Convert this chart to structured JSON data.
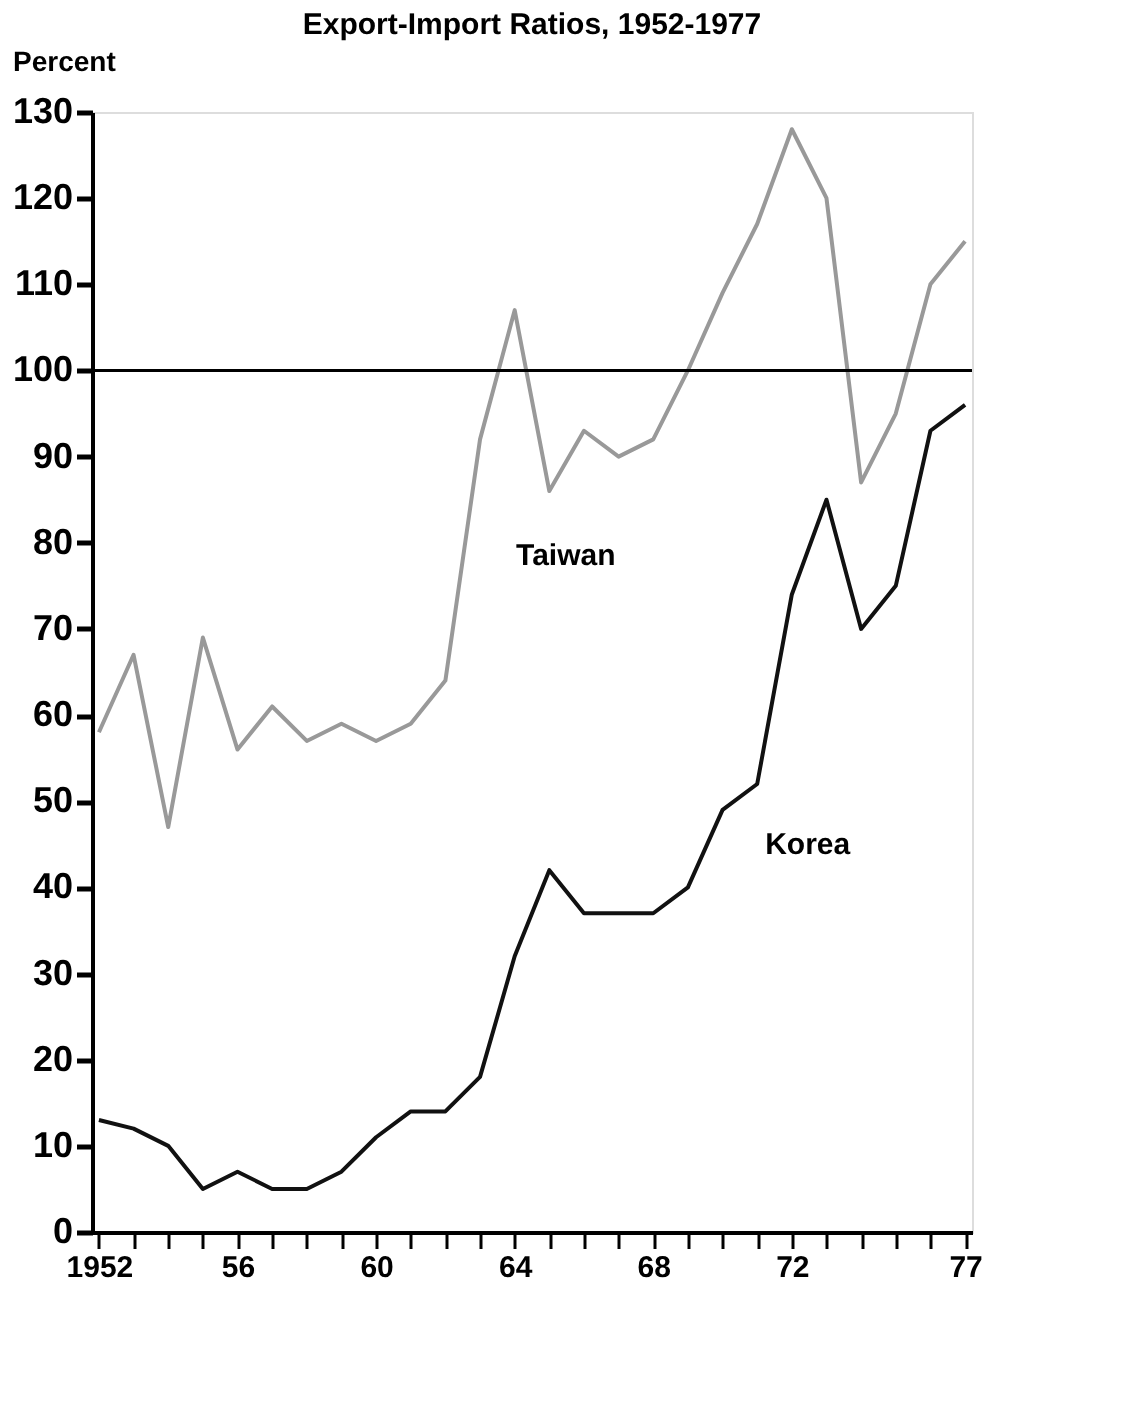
{
  "chart_data": {
    "type": "line",
    "title": "Export-Import Ratios, 1952-1977",
    "ylabel": "Percent",
    "x": [
      1952,
      1953,
      1954,
      1955,
      1956,
      1957,
      1958,
      1959,
      1960,
      1961,
      1962,
      1963,
      1964,
      1965,
      1966,
      1967,
      1968,
      1969,
      1970,
      1971,
      1972,
      1973,
      1974,
      1975,
      1976,
      1977
    ],
    "series": [
      {
        "name": "Taiwan",
        "color": "#999999",
        "values": [
          58,
          67,
          47,
          69,
          56,
          61,
          57,
          59,
          57,
          59,
          64,
          92,
          107,
          86,
          93,
          90,
          92,
          100,
          109,
          117,
          128,
          120,
          87,
          95,
          110,
          115
        ]
      },
      {
        "name": "Korea",
        "color": "#111111",
        "values": [
          13,
          12,
          10,
          5,
          7,
          5,
          5,
          7,
          11,
          14,
          14,
          18,
          32,
          42,
          37,
          37,
          37,
          40,
          49,
          52,
          74,
          85,
          70,
          75,
          93,
          96
        ]
      }
    ],
    "xlim": [
      1951.8,
      1977.2
    ],
    "xticks": [
      1952,
      {
        "value": 1953,
        "label": null
      },
      {
        "value": 1954,
        "label": null
      },
      {
        "value": 1955,
        "label": null
      },
      {
        "value": 1956,
        "label": "56"
      },
      {
        "value": 1957,
        "label": null
      },
      {
        "value": 1958,
        "label": null
      },
      {
        "value": 1959,
        "label": null
      },
      {
        "value": 1960,
        "label": "60"
      },
      {
        "value": 1961,
        "label": null
      },
      {
        "value": 1962,
        "label": null
      },
      {
        "value": 1963,
        "label": null
      },
      {
        "value": 1964,
        "label": "64"
      },
      {
        "value": 1965,
        "label": null
      },
      {
        "value": 1966,
        "label": null
      },
      {
        "value": 1967,
        "label": null
      },
      {
        "value": 1968,
        "label": "68"
      },
      {
        "value": 1969,
        "label": null
      },
      {
        "value": 1970,
        "label": null
      },
      {
        "value": 1971,
        "label": null
      },
      {
        "value": 1972,
        "label": "72"
      },
      {
        "value": 1973,
        "label": null
      },
      {
        "value": 1974,
        "label": null
      },
      {
        "value": 1975,
        "label": null
      },
      {
        "value": 1976,
        "label": null
      },
      {
        "value": 1977,
        "label": "77"
      }
    ],
    "ylim": [
      0,
      130
    ],
    "yticks": [
      0,
      10,
      20,
      30,
      40,
      50,
      60,
      70,
      80,
      90,
      100,
      110,
      120,
      130
    ],
    "ref_lines": [
      {
        "axis": "y",
        "value": 100,
        "color": "#000000"
      }
    ],
    "grid": false,
    "legend": false,
    "marker": "none",
    "line_style": "solid"
  }
}
